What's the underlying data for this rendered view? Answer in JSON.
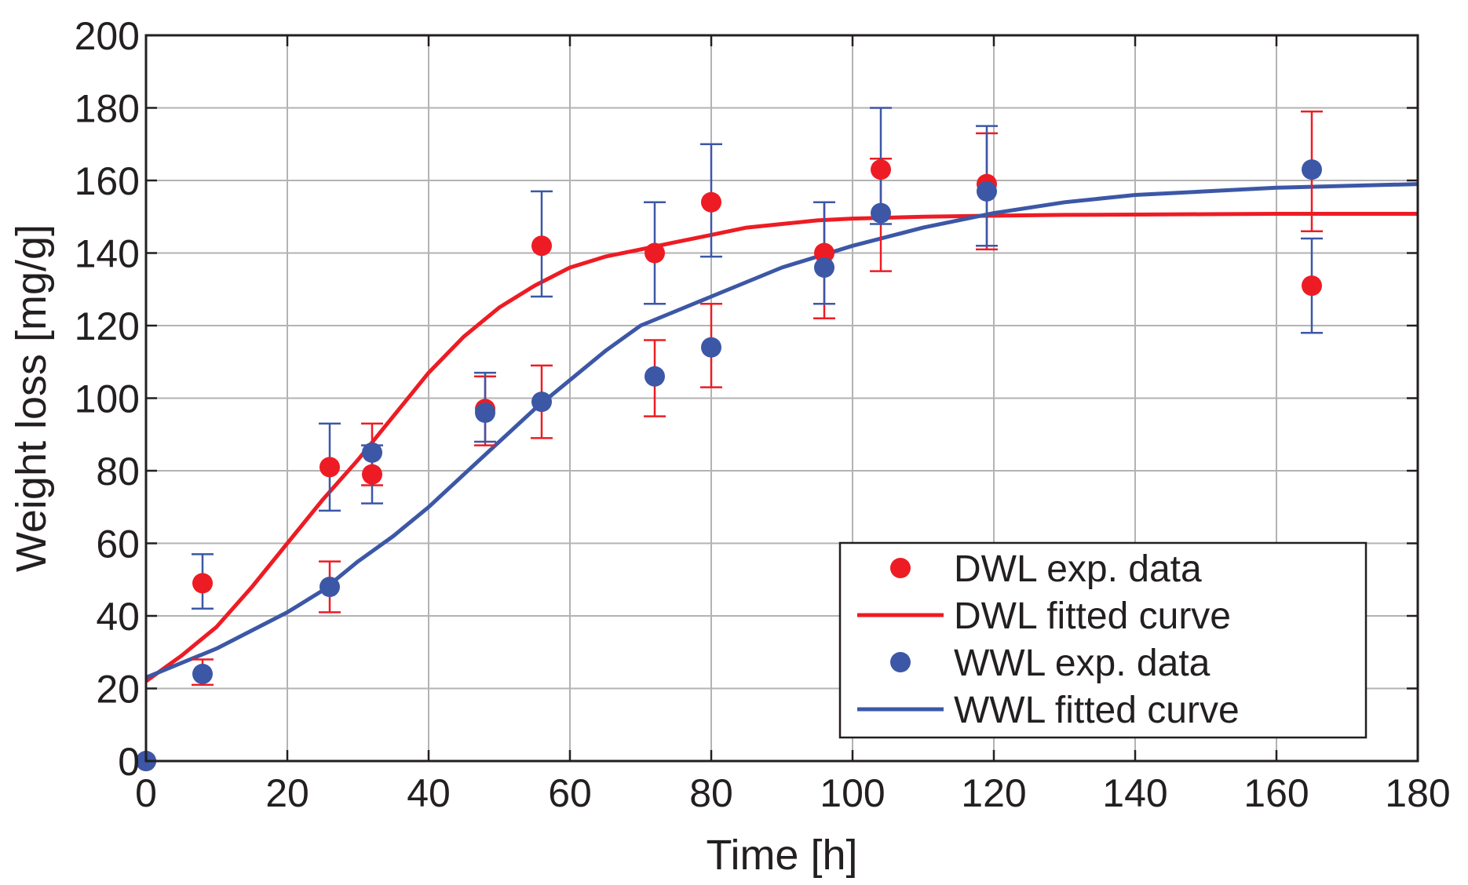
{
  "chart_data": {
    "type": "scatter",
    "title": "",
    "xlabel": "Time [h]",
    "ylabel": "Weight loss [mg/g]",
    "xlim": [
      0,
      180
    ],
    "ylim": [
      0,
      200
    ],
    "x_ticks": [
      "0",
      "20",
      "40",
      "60",
      "80",
      "100",
      "120",
      "140",
      "160",
      "180"
    ],
    "y_ticks": [
      "0",
      "20",
      "40",
      "60",
      "80",
      "100",
      "120",
      "140",
      "160",
      "180",
      "200"
    ],
    "grid": true,
    "legend_position": "bottom-right",
    "series": [
      {
        "name": "DWL exp. data",
        "kind": "points",
        "color": "#ed1c24",
        "x": [
          0,
          8,
          26,
          32,
          48,
          56,
          72,
          80,
          96,
          104,
          119,
          165
        ],
        "y": [
          0,
          49,
          81,
          79,
          97,
          142,
          140,
          154,
          140,
          163,
          159,
          131
        ],
        "err_low": [
          0,
          21,
          41,
          76,
          87,
          89,
          95,
          103,
          122,
          135,
          141,
          146
        ],
        "err_high": [
          0,
          28,
          55,
          93,
          106,
          109,
          116,
          126,
          154,
          166,
          173,
          179
        ],
        "err_on_point": [
          false,
          false,
          false,
          true,
          true,
          false,
          false,
          false,
          true,
          true,
          true,
          false
        ],
        "err_x_offset": [
          0,
          0,
          0,
          0,
          0,
          0,
          0,
          0,
          0,
          0,
          0,
          0
        ]
      },
      {
        "name": "DWL fitted curve",
        "kind": "curve",
        "color": "#ed1c24",
        "x": [
          0,
          5,
          10,
          15,
          20,
          25,
          30,
          35,
          40,
          45,
          50,
          55,
          60,
          65,
          70,
          75,
          80,
          85,
          90,
          95,
          100,
          110,
          120,
          130,
          140,
          150,
          160,
          170,
          180
        ],
        "y": [
          22,
          29,
          37,
          48,
          60,
          72,
          83,
          95,
          107,
          117,
          125,
          131,
          136,
          139,
          141,
          143,
          145,
          147,
          148,
          149,
          149.5,
          150,
          150.3,
          150.5,
          150.6,
          150.7,
          150.8,
          150.8,
          150.8
        ]
      },
      {
        "name": "WWL exp. data",
        "kind": "points",
        "color": "#3c57a6",
        "x": [
          0,
          8,
          26,
          32,
          48,
          56,
          72,
          80,
          96,
          104,
          119,
          165
        ],
        "y": [
          0,
          24,
          48,
          85,
          96,
          99,
          106,
          114,
          136,
          151,
          157,
          163
        ],
        "err_low": [
          0,
          42,
          69,
          71,
          88,
          128,
          126,
          139,
          126,
          148,
          142,
          118
        ],
        "err_high": [
          0,
          57,
          93,
          87,
          107,
          157,
          154,
          170,
          154,
          180,
          175,
          144
        ],
        "err_on_point": [
          false,
          false,
          false,
          true,
          true,
          false,
          false,
          false,
          true,
          true,
          true,
          false
        ],
        "err_x_offset": [
          0,
          0,
          0,
          0,
          0,
          0,
          0,
          0,
          0,
          0,
          0,
          0
        ]
      },
      {
        "name": "WWL fitted curve",
        "kind": "curve",
        "color": "#3c57a6",
        "x": [
          0,
          5,
          10,
          15,
          20,
          25,
          30,
          35,
          40,
          45,
          50,
          55,
          60,
          65,
          70,
          75,
          80,
          85,
          90,
          95,
          100,
          110,
          120,
          130,
          140,
          150,
          160,
          170,
          180
        ],
        "y": [
          23,
          27,
          31,
          36,
          41,
          47,
          55,
          62,
          70,
          79,
          88,
          97,
          105,
          113,
          120,
          124,
          128,
          132,
          136,
          139,
          142,
          147,
          151,
          154,
          156,
          157,
          158,
          158.5,
          159
        ]
      }
    ]
  }
}
